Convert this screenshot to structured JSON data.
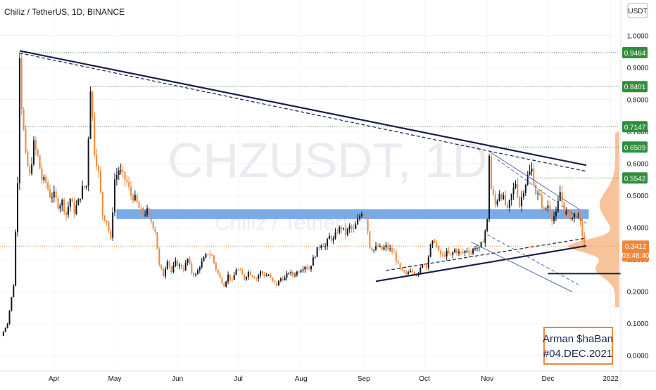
{
  "header": {
    "symbol_title": "Chiliz / TetherUS, 1D, BINANCE",
    "currency_badge": "USDT"
  },
  "watermark": {
    "ticker": "CHZUSDT, 1D",
    "name": "Chiliz / TetherUS"
  },
  "signature": {
    "line1": "Arman $haBan",
    "line2": "#04.DEC.2021"
  },
  "colors": {
    "up": "#131722",
    "down": "#f0883a",
    "level_label": "#2f8f3c",
    "current_label": "#f0883a",
    "zone": "#4a90e2",
    "trendline": "#1a1f4d",
    "channel": "#5a6aa8"
  },
  "chart_data": {
    "type": "candlestick",
    "title": "Chiliz / TetherUS, 1D, BINANCE",
    "y_unit": "USDT",
    "ylim": [
      -0.01,
      1.045
    ],
    "y_ticks": [
      "0.0000",
      "0.1000",
      "0.2000",
      "0.3000",
      "0.4000",
      "0.5000",
      "0.6000",
      "0.7000",
      "0.8000",
      "0.9000",
      "1.0000"
    ],
    "x_ticks": [
      "Apr",
      "May",
      "Jun",
      "Jul",
      "Aug",
      "Sep",
      "Oct",
      "Nov",
      "Dec",
      "2022"
    ],
    "x_tick_days": [
      26,
      56,
      87,
      117,
      148,
      179,
      209,
      240,
      270,
      301
    ],
    "x_range_days": [
      0,
      306
    ],
    "current_price": {
      "value": 0.3412,
      "label": "0.3412",
      "countdown": "03:48:40"
    },
    "levels": [
      {
        "value": 0.9464,
        "label": "0.9464"
      },
      {
        "value": 0.8401,
        "label": "0.8401"
      },
      {
        "value": 0.7147,
        "label": "0.7147"
      },
      {
        "value": 0.6509,
        "label": "0.6509"
      },
      {
        "value": 0.5542,
        "label": "0.5542"
      }
    ],
    "price_path": [
      [
        0,
        0.06
      ],
      [
        3,
        0.1
      ],
      [
        6,
        0.22
      ],
      [
        8,
        0.55
      ],
      [
        9,
        0.9464
      ],
      [
        10,
        0.78
      ],
      [
        12,
        0.62
      ],
      [
        14,
        0.56
      ],
      [
        16,
        0.66
      ],
      [
        18,
        0.62
      ],
      [
        20,
        0.55
      ],
      [
        22,
        0.54
      ],
      [
        24,
        0.5
      ],
      [
        26,
        0.5
      ],
      [
        28,
        0.47
      ],
      [
        30,
        0.48
      ],
      [
        32,
        0.44
      ],
      [
        34,
        0.49
      ],
      [
        36,
        0.45
      ],
      [
        38,
        0.48
      ],
      [
        40,
        0.52
      ],
      [
        42,
        0.53
      ],
      [
        44,
        0.8401
      ],
      [
        46,
        0.64
      ],
      [
        48,
        0.57
      ],
      [
        50,
        0.44
      ],
      [
        52,
        0.42
      ],
      [
        54,
        0.36
      ],
      [
        56,
        0.55
      ],
      [
        58,
        0.58
      ],
      [
        60,
        0.56
      ],
      [
        62,
        0.54
      ],
      [
        64,
        0.5
      ],
      [
        66,
        0.49
      ],
      [
        68,
        0.46
      ],
      [
        70,
        0.44
      ],
      [
        72,
        0.45
      ],
      [
        74,
        0.42
      ],
      [
        76,
        0.39
      ],
      [
        78,
        0.28
      ],
      [
        80,
        0.25
      ],
      [
        82,
        0.3
      ],
      [
        84,
        0.26
      ],
      [
        86,
        0.29
      ],
      [
        88,
        0.28
      ],
      [
        90,
        0.27
      ],
      [
        92,
        0.3
      ],
      [
        94,
        0.26
      ],
      [
        96,
        0.25
      ],
      [
        98,
        0.28
      ],
      [
        100,
        0.3
      ],
      [
        102,
        0.32
      ],
      [
        104,
        0.31
      ],
      [
        106,
        0.27
      ],
      [
        108,
        0.24
      ],
      [
        110,
        0.22
      ],
      [
        112,
        0.25
      ],
      [
        114,
        0.23
      ],
      [
        116,
        0.27
      ],
      [
        118,
        0.26
      ],
      [
        120,
        0.24
      ],
      [
        122,
        0.26
      ],
      [
        124,
        0.25
      ],
      [
        126,
        0.24
      ],
      [
        128,
        0.26
      ],
      [
        130,
        0.25
      ],
      [
        132,
        0.25
      ],
      [
        134,
        0.23
      ],
      [
        136,
        0.22
      ],
      [
        138,
        0.24
      ],
      [
        140,
        0.24
      ],
      [
        142,
        0.26
      ],
      [
        144,
        0.25
      ],
      [
        146,
        0.26
      ],
      [
        148,
        0.27
      ],
      [
        150,
        0.28
      ],
      [
        152,
        0.27
      ],
      [
        154,
        0.3
      ],
      [
        156,
        0.33
      ],
      [
        158,
        0.35
      ],
      [
        160,
        0.34
      ],
      [
        162,
        0.37
      ],
      [
        164,
        0.36
      ],
      [
        166,
        0.39
      ],
      [
        168,
        0.4
      ],
      [
        170,
        0.38
      ],
      [
        172,
        0.4
      ],
      [
        174,
        0.39
      ],
      [
        176,
        0.42
      ],
      [
        178,
        0.45
      ],
      [
        180,
        0.44
      ],
      [
        182,
        0.34
      ],
      [
        184,
        0.33
      ],
      [
        186,
        0.34
      ],
      [
        188,
        0.33
      ],
      [
        190,
        0.34
      ],
      [
        192,
        0.33
      ],
      [
        194,
        0.32
      ],
      [
        196,
        0.28
      ],
      [
        198,
        0.26
      ],
      [
        200,
        0.25
      ],
      [
        202,
        0.27
      ],
      [
        204,
        0.26
      ],
      [
        206,
        0.25
      ],
      [
        208,
        0.29
      ],
      [
        210,
        0.28
      ],
      [
        212,
        0.34
      ],
      [
        214,
        0.36
      ],
      [
        216,
        0.32
      ],
      [
        218,
        0.31
      ],
      [
        220,
        0.32
      ],
      [
        222,
        0.31
      ],
      [
        224,
        0.33
      ],
      [
        226,
        0.32
      ],
      [
        228,
        0.32
      ],
      [
        230,
        0.33
      ],
      [
        232,
        0.32
      ],
      [
        234,
        0.34
      ],
      [
        236,
        0.33
      ],
      [
        238,
        0.36
      ],
      [
        240,
        0.42
      ],
      [
        241,
        0.63
      ],
      [
        242,
        0.52
      ],
      [
        244,
        0.47
      ],
      [
        246,
        0.51
      ],
      [
        248,
        0.49
      ],
      [
        250,
        0.45
      ],
      [
        252,
        0.5
      ],
      [
        254,
        0.54
      ],
      [
        256,
        0.47
      ],
      [
        258,
        0.52
      ],
      [
        260,
        0.56
      ],
      [
        262,
        0.58
      ],
      [
        264,
        0.51
      ],
      [
        266,
        0.49
      ],
      [
        268,
        0.45
      ],
      [
        270,
        0.47
      ],
      [
        272,
        0.43
      ],
      [
        274,
        0.44
      ],
      [
        276,
        0.51
      ],
      [
        278,
        0.45
      ],
      [
        280,
        0.44
      ],
      [
        282,
        0.43
      ],
      [
        284,
        0.45
      ],
      [
        286,
        0.41
      ],
      [
        288,
        0.3412
      ]
    ],
    "annotations": {
      "upper_trendline": {
        "from": {
          "day": 9,
          "value": 0.952
        },
        "to": {
          "day": 289,
          "value": 0.594
        }
      },
      "upper_dashed": {
        "from": {
          "day": 9,
          "value": 0.945
        },
        "to": {
          "day": 289,
          "value": 0.575
        }
      },
      "lower_trendline": {
        "from": {
          "day": 185,
          "value": 0.231
        },
        "to": {
          "day": 289,
          "value": 0.342
        }
      },
      "lower_dashed": {
        "from": {
          "day": 190,
          "value": 0.265
        },
        "to": {
          "day": 289,
          "value": 0.366
        }
      },
      "channel_upper": {
        "from": {
          "day": 241,
          "value": 0.637
        },
        "to": {
          "day": 286,
          "value": 0.454
        }
      },
      "channel_upper_dashed": {
        "from": {
          "day": 245,
          "value": 0.612
        },
        "to": {
          "day": 289,
          "value": 0.412
        }
      },
      "channel_lower": {
        "from": {
          "day": 232,
          "value": 0.354
        },
        "to": {
          "day": 282,
          "value": 0.198
        }
      },
      "channel_lower_dashed": {
        "from": {
          "day": 240,
          "value": 0.377
        },
        "to": {
          "day": 285,
          "value": 0.221
        }
      },
      "support_zone": {
        "from_day": 57,
        "to_day": 290,
        "low": 0.427,
        "high": 0.455
      },
      "support_line": {
        "from_day": 270,
        "to_day": 306,
        "value": 0.255
      },
      "volume_profile_node": 0.3412
    }
  }
}
